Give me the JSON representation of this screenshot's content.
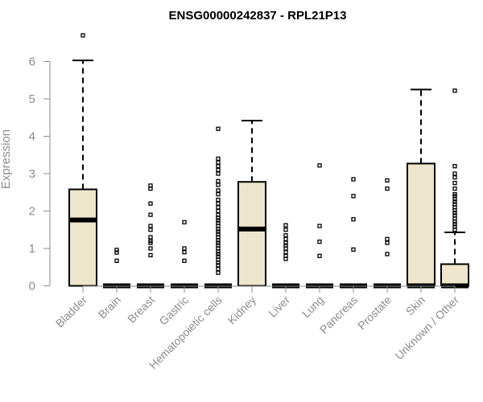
{
  "chart_data": {
    "type": "box",
    "title": "ENSG00000242837 - RPL21P13",
    "xlabel": "",
    "ylabel": "Expression",
    "ylim": [
      0,
      6.9
    ],
    "yticks": [
      0,
      1,
      2,
      3,
      4,
      5,
      6
    ],
    "grid": false,
    "box_fill": "#ede6cd",
    "categories": [
      "Bladder",
      "Brain",
      "Breast",
      "Gastric",
      "Hematopoietic cells",
      "Kidney",
      "Liver",
      "Lung",
      "Pancreas",
      "Prostate",
      "Skin",
      "Unknown / Other"
    ],
    "boxes": [
      {
        "category": "Bladder",
        "min": 0,
        "q1": 0,
        "median": 1.76,
        "q3": 2.58,
        "max": 6.03,
        "outliers": [
          6.7
        ]
      },
      {
        "category": "Brain",
        "min": 0,
        "q1": 0,
        "median": 0,
        "q3": 0,
        "max": 0,
        "outliers": [
          0.67,
          0.89,
          0.96
        ]
      },
      {
        "category": "Breast",
        "min": 0,
        "q1": 0,
        "median": 0,
        "q3": 0,
        "max": 0,
        "outliers": [
          0.82,
          1.0,
          1.15,
          1.2,
          1.3,
          1.5,
          1.6,
          1.9,
          2.2,
          2.6,
          2.68
        ]
      },
      {
        "category": "Gastric",
        "min": 0,
        "q1": 0,
        "median": 0,
        "q3": 0,
        "max": 0,
        "outliers": [
          0.67,
          0.9,
          1.0,
          1.7
        ]
      },
      {
        "category": "Hematopoietic cells",
        "min": 0,
        "q1": 0,
        "median": 0,
        "q3": 0,
        "max": 0,
        "outliers": [
          0.35,
          0.45,
          0.55,
          0.62,
          0.7,
          0.78,
          0.85,
          0.92,
          1.0,
          1.08,
          1.15,
          1.22,
          1.3,
          1.38,
          1.45,
          1.52,
          1.6,
          1.68,
          1.75,
          1.82,
          1.9,
          2.0,
          2.1,
          2.2,
          2.3,
          2.45,
          2.55,
          2.7,
          2.8,
          3.0,
          3.1,
          3.2,
          3.3,
          3.4,
          4.2
        ]
      },
      {
        "category": "Kidney",
        "min": 0,
        "q1": 0,
        "median": 1.52,
        "q3": 2.78,
        "max": 4.42,
        "outliers": []
      },
      {
        "category": "Liver",
        "min": 0,
        "q1": 0,
        "median": 0,
        "q3": 0,
        "max": 0,
        "outliers": [
          0.72,
          0.8,
          0.9,
          1.0,
          1.08,
          1.15,
          1.25,
          1.35,
          1.5,
          1.62
        ]
      },
      {
        "category": "Lung",
        "min": 0,
        "q1": 0,
        "median": 0,
        "q3": 0,
        "max": 0,
        "outliers": [
          0.8,
          1.18,
          1.6,
          3.22
        ]
      },
      {
        "category": "Pancreas",
        "min": 0,
        "q1": 0,
        "median": 0,
        "q3": 0,
        "max": 0,
        "outliers": [
          0.97,
          1.78,
          2.4,
          2.85
        ]
      },
      {
        "category": "Prostate",
        "min": 0,
        "q1": 0,
        "median": 0,
        "q3": 0,
        "max": 0,
        "outliers": [
          0.85,
          1.15,
          1.25,
          2.6,
          2.82
        ]
      },
      {
        "category": "Skin",
        "min": 0,
        "q1": 0,
        "median": 0,
        "q3": 3.27,
        "max": 5.25,
        "outliers": []
      },
      {
        "category": "Unknown / Other",
        "min": 0,
        "q1": 0,
        "median": 0,
        "q3": 0.58,
        "max": 1.43,
        "outliers": [
          1.5,
          1.58,
          1.65,
          1.72,
          1.8,
          1.88,
          1.95,
          2.02,
          2.1,
          2.18,
          2.25,
          2.32,
          2.4,
          2.45,
          2.6,
          2.75,
          2.9,
          3.0,
          3.2,
          5.22
        ]
      }
    ]
  }
}
